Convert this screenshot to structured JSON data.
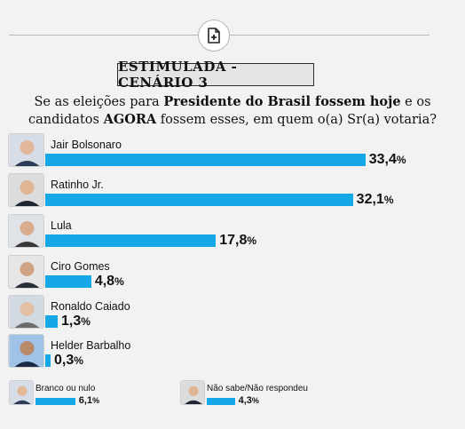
{
  "header": {
    "badge": "ESTIMULADA - CENÁRIO 3",
    "doc_icon": "document-plus-icon"
  },
  "question": {
    "t1": "Se as eleições para ",
    "b1": "Presidente do Brasil fossem hoje",
    "t2": " e os candidatos ",
    "b2": "AGORA",
    "t3": " fossem esses, em quem o(a) Sr(a) votaria?"
  },
  "chart_data": {
    "type": "bar",
    "orientation": "horizontal",
    "title": "ESTIMULADA - CENÁRIO 3",
    "categories": [
      "Jair Bolsonaro",
      "Ratinho Jr.",
      "Lula",
      "Ciro Gomes",
      "Ronaldo Caiado",
      "Helder Barbalho",
      "Branco ou nulo",
      "Não sabe/Não respondeu"
    ],
    "values": [
      33.4,
      32.1,
      17.8,
      4.8,
      1.3,
      0.3,
      6.1,
      4.3
    ],
    "labels": [
      "33,4",
      "32,1",
      "17,8",
      "4,8",
      "1,3",
      "0,3",
      "6,1",
      "4,3"
    ],
    "unit": "%",
    "bar_color": "#14a9e6",
    "grid": false
  }
}
